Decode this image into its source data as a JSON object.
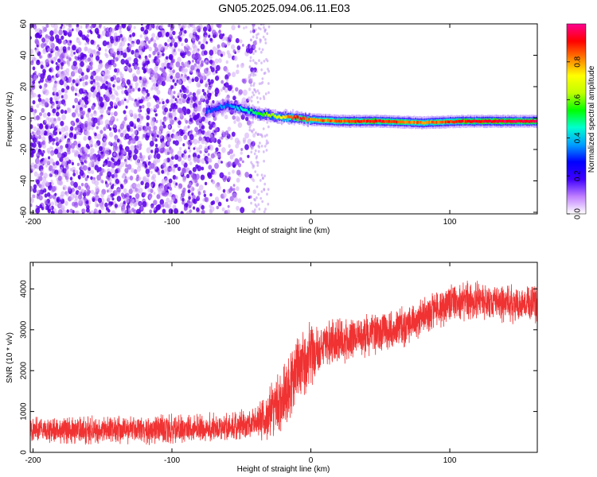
{
  "figure": {
    "title": "GN05.2025.094.06.11.E03"
  },
  "chart_data": [
    {
      "type": "heatmap",
      "xlabel": "Height of straight line (km)",
      "ylabel": "Frequency (Hz)",
      "xlim": [
        -202,
        163
      ],
      "ylim": [
        -61,
        60
      ],
      "x_ticks": [
        -200,
        -100,
        0,
        100
      ],
      "x_tick_labels": [
        "-200",
        "-100",
        "0",
        "100"
      ],
      "y_ticks": [
        -60,
        -40,
        -20,
        0,
        20,
        40,
        60
      ],
      "y_tick_labels": [
        "-60",
        "-40",
        "-20",
        "0",
        "20",
        "40",
        "60"
      ],
      "grid": false,
      "colorbar": {
        "label": "Normalized spectral amplitude",
        "range": [
          0.0,
          1.0
        ],
        "ticks": [
          0.0,
          0.2,
          0.4,
          0.6,
          0.8
        ],
        "tick_labels": [
          "0.0",
          "0.2",
          "0.4",
          "0.6",
          "0.8"
        ],
        "colormap": [
          "#ffffff",
          "#c080ff",
          "#4000ff",
          "#0000ff",
          "#00a0ff",
          "#00ffd0",
          "#00ff00",
          "#c0ff00",
          "#ffff00",
          "#ff8000",
          "#ff0000",
          "#ff0090"
        ]
      },
      "noise_region": {
        "x_range": [
          -202,
          -40
        ],
        "freq_range": [
          -61,
          60
        ],
        "amplitude": 0.2
      },
      "line_trace": [
        {
          "x": -75,
          "freq": 4,
          "amplitude": 0.3
        },
        {
          "x": -60,
          "freq": 8,
          "amplitude": 0.35
        },
        {
          "x": -50,
          "freq": 6,
          "amplitude": 0.45
        },
        {
          "x": -40,
          "freq": 3,
          "amplitude": 0.5
        },
        {
          "x": -25,
          "freq": 1,
          "amplitude": 0.65
        },
        {
          "x": -10,
          "freq": 0,
          "amplitude": 0.9
        },
        {
          "x": 0,
          "freq": -1,
          "amplitude": 0.8
        },
        {
          "x": 20,
          "freq": -2,
          "amplitude": 0.85
        },
        {
          "x": 50,
          "freq": -2,
          "amplitude": 0.9
        },
        {
          "x": 80,
          "freq": -3,
          "amplitude": 0.8
        },
        {
          "x": 110,
          "freq": -2,
          "amplitude": 0.9
        },
        {
          "x": 140,
          "freq": -2,
          "amplitude": 0.95
        },
        {
          "x": 163,
          "freq": -2,
          "amplitude": 0.95
        }
      ]
    },
    {
      "type": "line",
      "xlabel": "Height of straight line (km)",
      "ylabel": "SNR (10 * v/v)",
      "xlim": [
        -202,
        163
      ],
      "ylim": [
        0,
        4650
      ],
      "x_ticks": [
        -200,
        -100,
        0,
        100
      ],
      "x_tick_labels": [
        "-200",
        "-100",
        "0",
        "100"
      ],
      "y_ticks": [
        0,
        1000,
        2000,
        3000,
        4000
      ],
      "y_tick_labels": [
        "0",
        "1000",
        "2000",
        "3000",
        "4000"
      ],
      "grid": false,
      "color": "#f03232",
      "trend": {
        "x": [
          -202,
          -150,
          -100,
          -60,
          -40,
          -30,
          -20,
          -10,
          0,
          10,
          30,
          50,
          70,
          80,
          100,
          120,
          140,
          163
        ],
        "y": [
          550,
          550,
          560,
          600,
          720,
          900,
          1350,
          2000,
          2400,
          2650,
          2800,
          2950,
          3100,
          3350,
          3650,
          3700,
          3650,
          3650
        ]
      },
      "noise_amplitude": {
        "x": [
          -202,
          -40,
          -30,
          -10,
          10,
          80,
          163
        ],
        "y": [
          300,
          350,
          600,
          900,
          550,
          450,
          450
        ]
      }
    }
  ]
}
